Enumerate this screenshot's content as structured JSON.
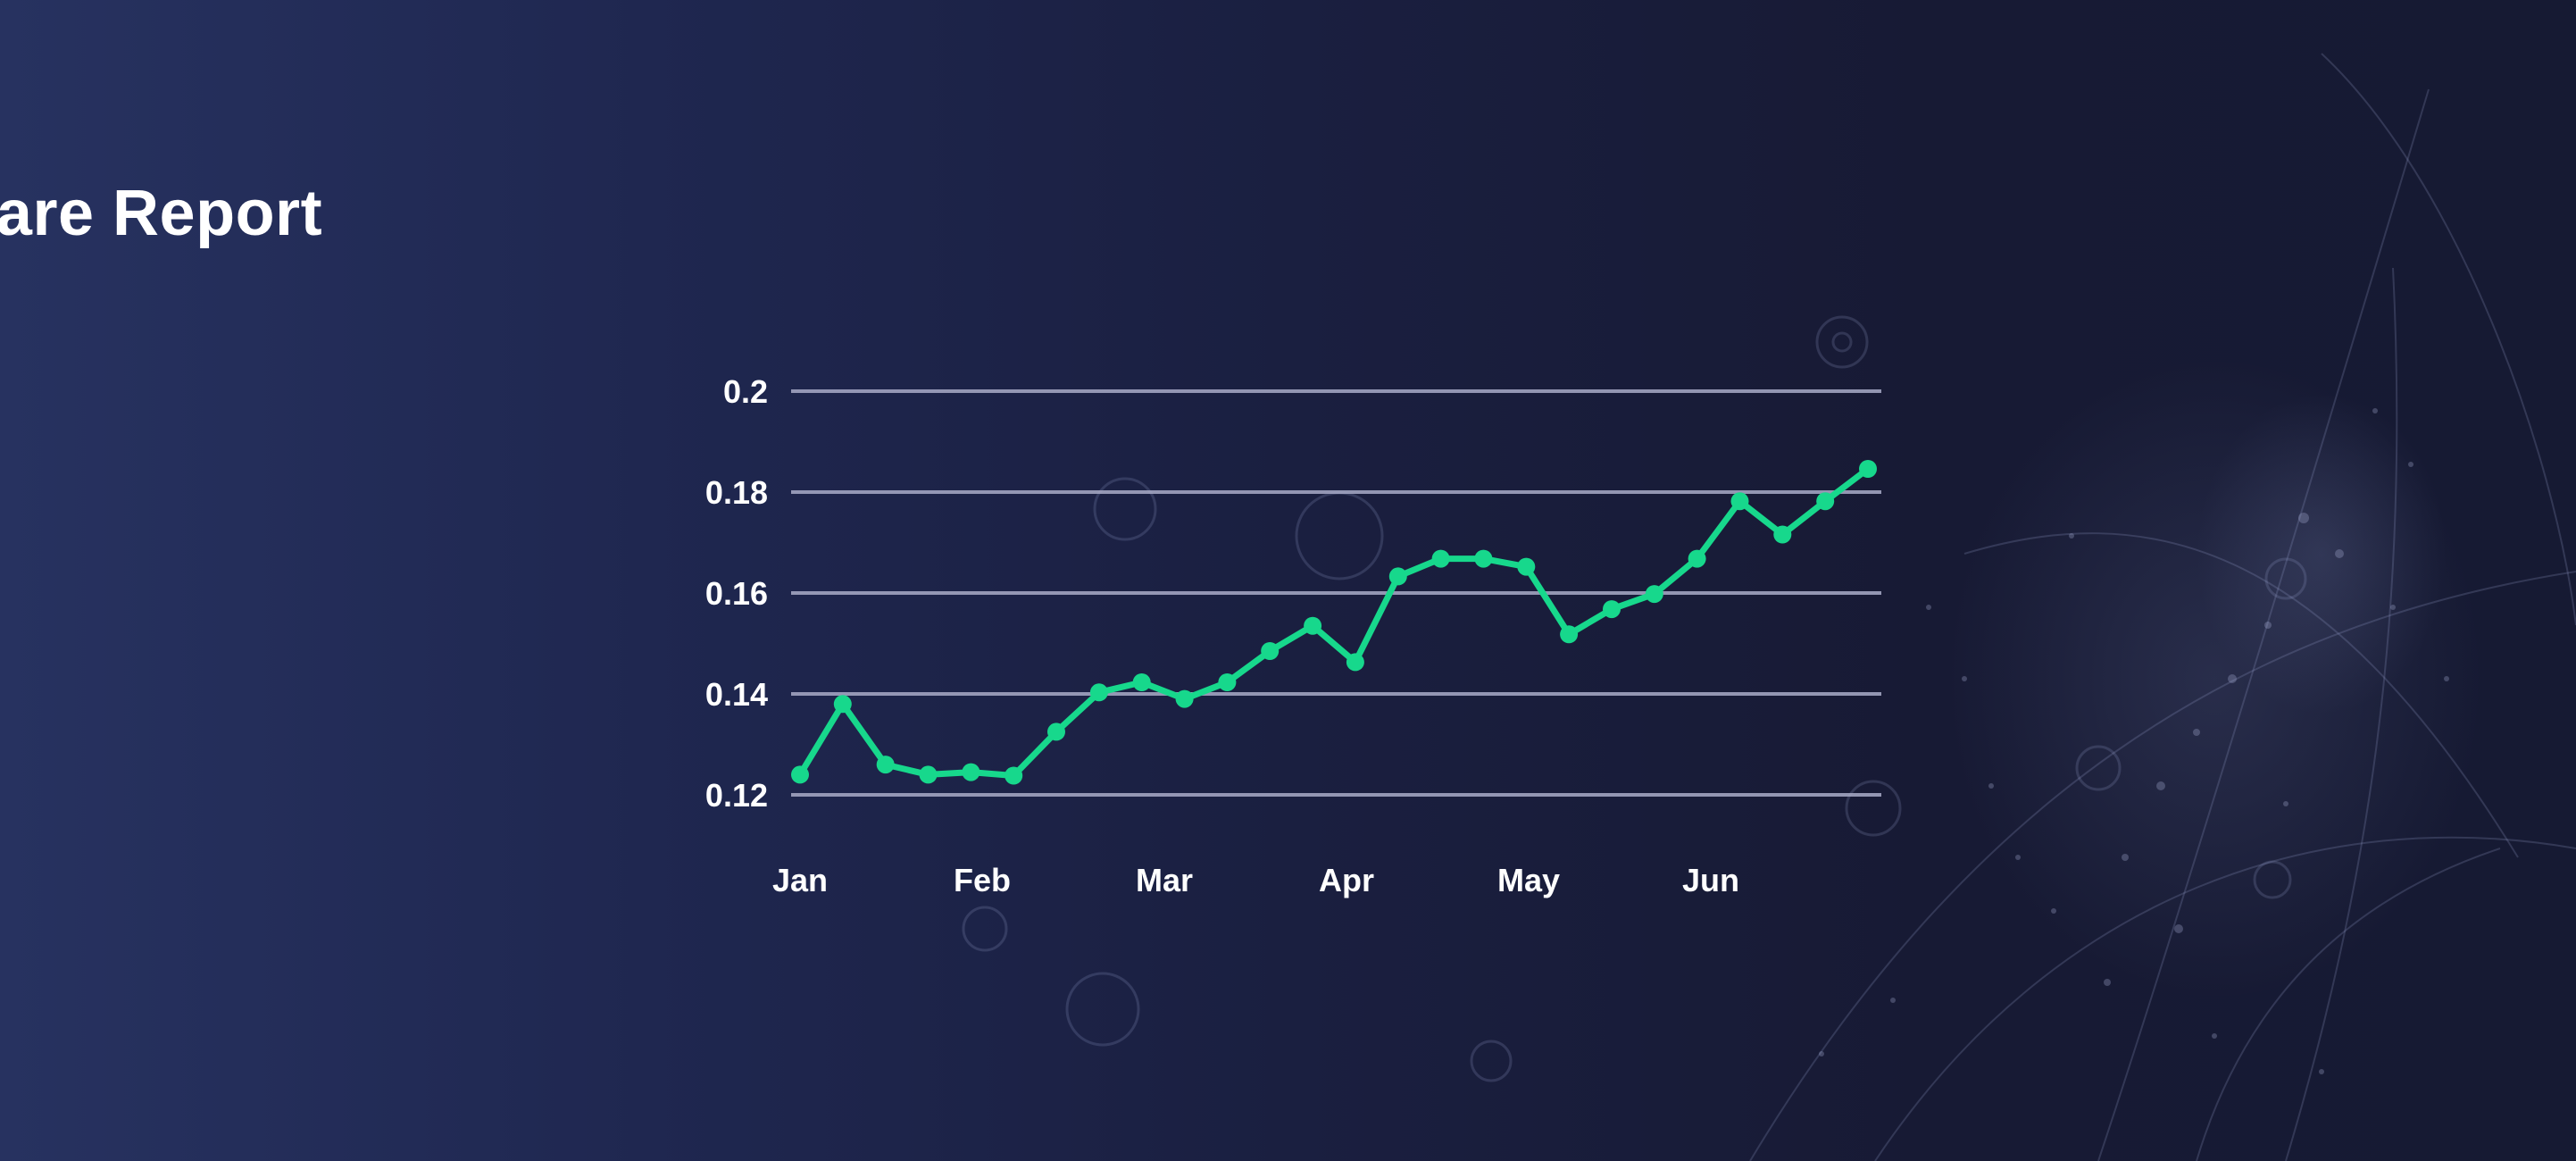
{
  "colors": {
    "background_left": "#273260",
    "background_right": "#161a33",
    "line": "#17d88c",
    "gridline": "#a9abc8",
    "text": "#ffffff"
  },
  "chart_data": {
    "type": "line",
    "title": "Airfare Report",
    "xlabel": "",
    "ylabel": "",
    "x_tick_labels": [
      "Jan",
      "Feb",
      "Mar",
      "Apr",
      "May",
      "Jun"
    ],
    "y_tick_labels": [
      "0.2",
      "0.18",
      "0.16",
      "0.14",
      "0.12"
    ],
    "y_ticks": [
      0.2,
      0.18,
      0.16,
      0.14,
      0.12
    ],
    "ylim": [
      0.12,
      0.2
    ],
    "grid": true,
    "legend": "none",
    "series": [
      {
        "values": [
          0.124,
          0.138,
          0.126,
          0.124,
          0.1245,
          0.1238,
          0.1325,
          0.1403,
          0.1423,
          0.139,
          0.1423,
          0.1485,
          0.1535,
          0.1463,
          0.1633,
          0.1668,
          0.1668,
          0.1652,
          0.1518,
          0.1568,
          0.1598,
          0.1668,
          0.1782,
          0.1716,
          0.1782,
          0.1846
        ]
      }
    ]
  }
}
